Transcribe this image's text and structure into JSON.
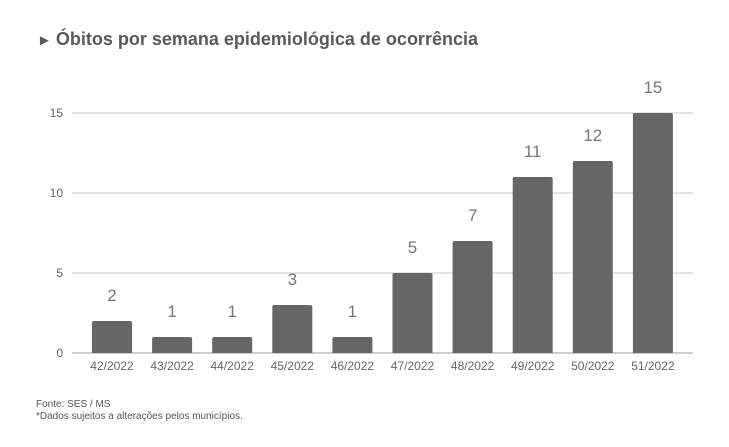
{
  "title": {
    "icon": "►",
    "text": "Óbitos por semana epidemiológica de ocorrência"
  },
  "footer": {
    "source": "Fonte: SES / MS",
    "note": "*Dados sujeitos a alterações pelos municípios."
  },
  "colors": {
    "bar": "#666666",
    "grid": "#c8c8c8",
    "axis": "#999999",
    "title": "#595959"
  },
  "chart_data": {
    "type": "bar",
    "title": "Óbitos por semana epidemiológica de ocorrência",
    "xlabel": "",
    "ylabel": "",
    "categories": [
      "42/2022",
      "43/2022",
      "44/2022",
      "45/2022",
      "46/2022",
      "47/2022",
      "48/2022",
      "49/2022",
      "50/2022",
      "51/2022"
    ],
    "values": [
      2,
      1,
      1,
      3,
      1,
      5,
      7,
      11,
      12,
      15
    ],
    "data_labels": [
      "2",
      "1",
      "1",
      "3",
      "1",
      "5",
      "7",
      "11",
      "12",
      "15"
    ],
    "ylim": [
      0,
      15
    ],
    "yticks": [
      0,
      5,
      10,
      15
    ],
    "grid": true,
    "legend": "none"
  }
}
